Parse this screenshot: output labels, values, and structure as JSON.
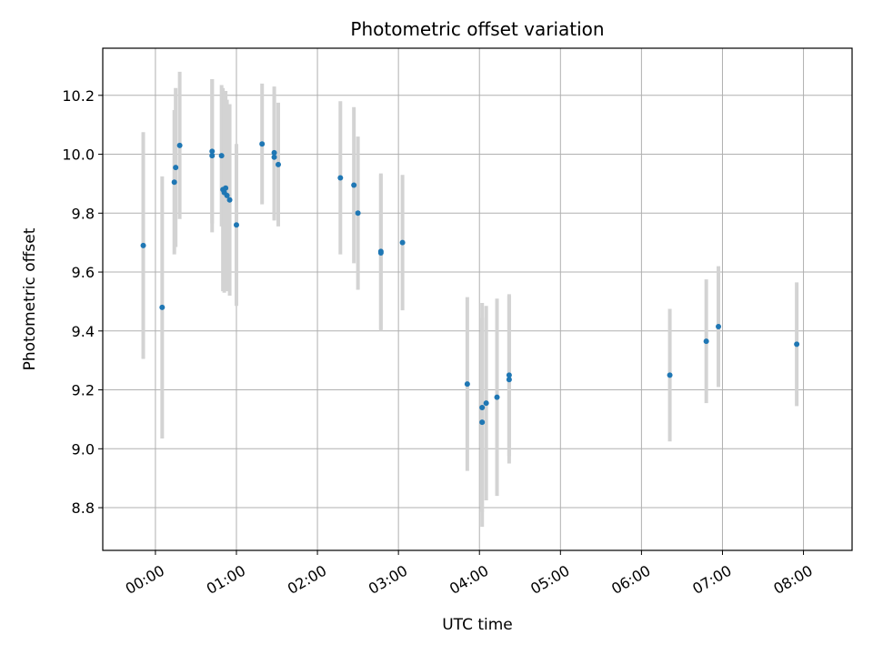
{
  "chart_data": {
    "type": "scatter",
    "title": "Photometric offset variation",
    "xlabel": "UTC time",
    "ylabel": "Photometric offset",
    "grid": true,
    "x_tick_labels": [
      "00:00",
      "01:00",
      "02:00",
      "03:00",
      "04:00",
      "05:00",
      "06:00",
      "07:00",
      "08:00"
    ],
    "y_tick_labels": [
      "8.8",
      "9.0",
      "9.2",
      "9.4",
      "9.6",
      "9.8",
      "10.0",
      "10.2"
    ],
    "xlim": [
      "-00:39",
      "08:36"
    ],
    "ylim": [
      8.655,
      10.36
    ],
    "x": [
      "-00:09",
      "00:05",
      "00:14",
      "00:15",
      "00:18",
      "00:42",
      "00:42",
      "00:49",
      "00:50",
      "00:51",
      "00:52",
      "00:53",
      "00:55",
      "01:00",
      "01:19",
      "01:28",
      "01:28",
      "01:31",
      "02:17",
      "02:27",
      "02:30",
      "02:47",
      "02:47",
      "03:03",
      "03:51",
      "04:02",
      "04:02",
      "04:05",
      "04:13",
      "04:22",
      "04:22",
      "06:21",
      "06:48",
      "06:57",
      "07:55"
    ],
    "y": [
      9.69,
      9.48,
      9.905,
      9.955,
      10.03,
      10.01,
      9.995,
      9.995,
      9.88,
      9.87,
      9.885,
      9.86,
      9.845,
      9.76,
      10.035,
      10.005,
      9.99,
      9.965,
      9.92,
      9.895,
      9.8,
      9.67,
      9.665,
      9.7,
      9.22,
      9.14,
      9.09,
      9.155,
      9.175,
      9.25,
      9.235,
      9.25,
      9.365,
      9.415,
      9.355
    ],
    "yerr": [
      0.385,
      0.445,
      0.245,
      0.27,
      0.25,
      0.245,
      0.26,
      0.24,
      0.345,
      0.34,
      0.33,
      0.325,
      0.325,
      0.275,
      0.205,
      0.225,
      0.215,
      0.21,
      0.26,
      0.265,
      0.26,
      0.265,
      0.265,
      0.23,
      0.295,
      0.355,
      0.355,
      0.33,
      0.335,
      0.275,
      0.285,
      0.225,
      0.21,
      0.205,
      0.21
    ],
    "marker_color": "#1f77b4",
    "errorbar_color": "#d3d3d3"
  }
}
